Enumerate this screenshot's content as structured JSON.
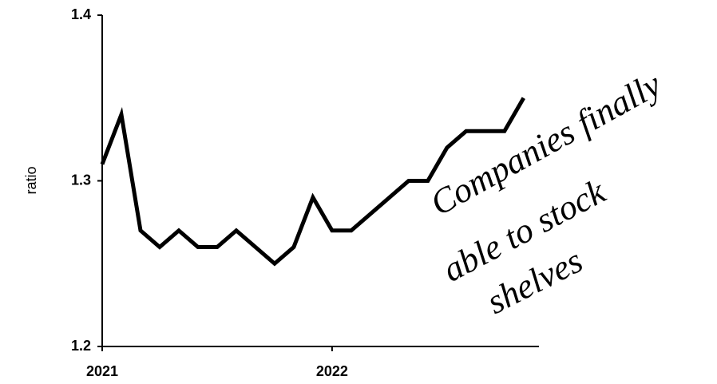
{
  "chart_data": {
    "type": "line",
    "y_label": "ratio",
    "x": [
      2021.0,
      2021.0833,
      2021.1667,
      2021.25,
      2021.3333,
      2021.4167,
      2021.5,
      2021.5833,
      2021.6667,
      2021.75,
      2021.8333,
      2021.9167,
      2022.0,
      2022.0833,
      2022.1667,
      2022.25,
      2022.3333,
      2022.4167,
      2022.5,
      2022.5833,
      2022.6667,
      2022.75,
      2022.8333
    ],
    "series": [
      {
        "name": "ratio",
        "color": "#000000",
        "values": [
          1.31,
          1.34,
          1.27,
          1.26,
          1.27,
          1.26,
          1.26,
          1.27,
          1.26,
          1.25,
          1.26,
          1.29,
          1.27,
          1.27,
          1.28,
          1.29,
          1.3,
          1.3,
          1.32,
          1.33,
          1.33,
          1.33,
          1.35
        ]
      }
    ],
    "xlim": [
      2021,
      2022.9
    ],
    "xticks": [
      2021,
      2022
    ],
    "ylim": [
      1.2,
      1.4
    ],
    "yticks": [
      1.2,
      1.3,
      1.4
    ],
    "grid": false,
    "annotation": [
      "Companies finally",
      "able to stock",
      "shelves"
    ]
  }
}
